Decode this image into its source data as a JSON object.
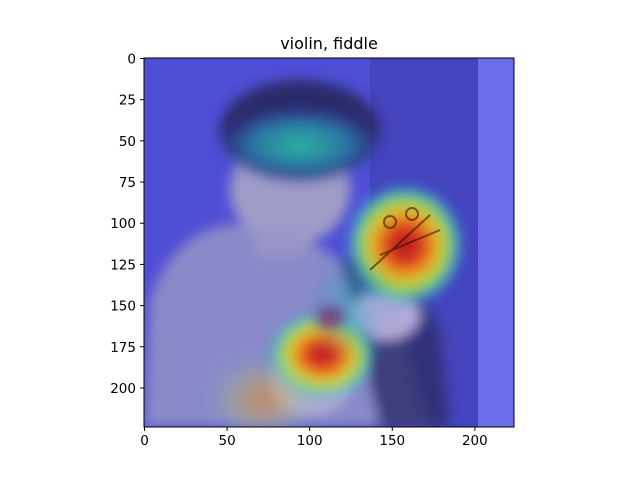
{
  "chart_data": {
    "type": "heatmap",
    "title": "violin, fiddle",
    "xlabel": "",
    "ylabel": "",
    "xlim": [
      0,
      224
    ],
    "ylim": [
      224,
      0
    ],
    "x_ticks": [
      0,
      50,
      100,
      150,
      200
    ],
    "y_ticks": [
      0,
      25,
      50,
      75,
      100,
      125,
      150,
      175,
      200
    ],
    "grid": false,
    "colormap": "jet",
    "overlay": "grad-cam heatmap over photo of a person playing a violin",
    "hotspots": [
      {
        "x": 112,
        "y": 180,
        "intensity": 1.0
      },
      {
        "x": 150,
        "y": 124,
        "intensity": 0.95
      },
      {
        "x": 160,
        "y": 100,
        "intensity": 0.55
      },
      {
        "x": 95,
        "y": 52,
        "intensity": 0.45
      },
      {
        "x": 72,
        "y": 210,
        "intensity": 0.5
      },
      {
        "x": 120,
        "y": 155,
        "intensity": 0.6
      }
    ]
  },
  "colors": {
    "background": "#ffffff",
    "cold": "#3d3dd6",
    "hot": "#d81f1f"
  }
}
